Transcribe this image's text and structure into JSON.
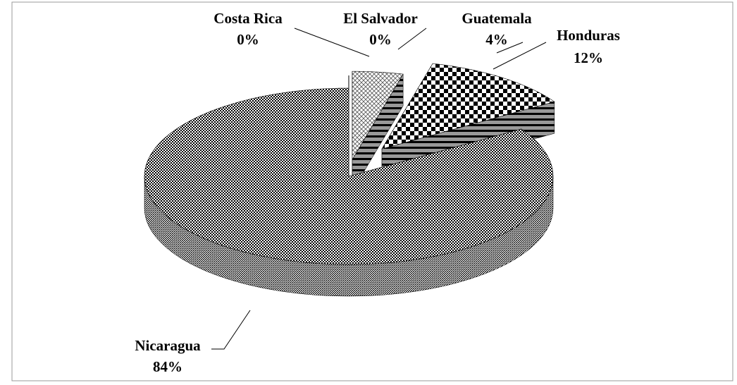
{
  "chart_data": {
    "type": "pie",
    "categories": [
      "Costa Rica",
      "El Salvador",
      "Guatemala",
      "Honduras",
      "Nicaragua"
    ],
    "values": [
      0,
      0,
      4,
      12,
      84
    ],
    "value_labels": [
      "0%",
      "0%",
      "4%",
      "12%",
      "84%"
    ]
  }
}
